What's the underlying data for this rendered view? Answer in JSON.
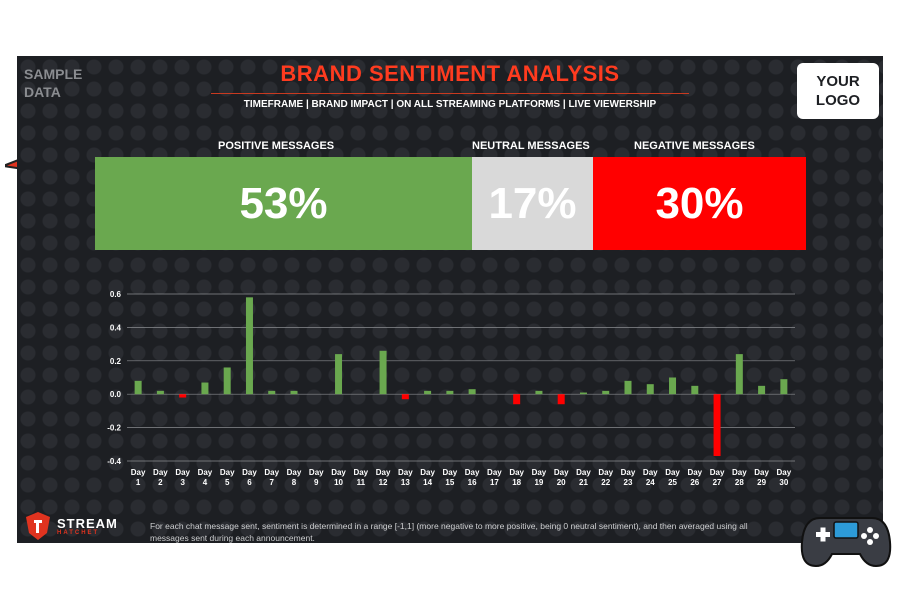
{
  "header": {
    "sample_label": "SAMPLE\nDATA",
    "title": "BRAND SENTIMENT ANALYSIS",
    "subtitle": "TIMEFRAME | BRAND IMPACT | ON ALL STREAMING PLATFORMS | LIVE VIEWERSHIP",
    "logo_text": "YOUR\nLOGO"
  },
  "summary": {
    "positive": {
      "label": "POSITIVE MESSAGES",
      "value": "53%",
      "color": "#6aa84f"
    },
    "neutral": {
      "label": "NEUTRAL MESSAGES",
      "value": "17%",
      "color": "#d9d9d9"
    },
    "negative": {
      "label": "NEGATIVE MESSAGES",
      "value": "30%",
      "color": "#ff0000"
    }
  },
  "chart_data": {
    "type": "bar",
    "categories": [
      "Day 1",
      "Day 2",
      "Day 3",
      "Day 4",
      "Day 5",
      "Day 6",
      "Day 7",
      "Day 8",
      "Day 9",
      "Day 10",
      "Day 11",
      "Day 12",
      "Day 13",
      "Day 14",
      "Day 15",
      "Day 16",
      "Day 17",
      "Day 18",
      "Day 19",
      "Day 20",
      "Day 21",
      "Day 22",
      "Day 23",
      "Day 24",
      "Day 25",
      "Day 26",
      "Day 27",
      "Day 28",
      "Day 29",
      "Day 30"
    ],
    "values": [
      0.08,
      0.02,
      -0.02,
      0.07,
      0.16,
      0.58,
      0.02,
      0.02,
      0,
      0.24,
      0,
      0.26,
      -0.03,
      0.02,
      0.02,
      0.03,
      0,
      -0.06,
      0.02,
      -0.06,
      0.01,
      0.02,
      0.08,
      0.06,
      0.1,
      0.05,
      -0.37,
      0.24,
      0.05,
      0.09
    ],
    "ylim": [
      -0.4,
      0.6
    ],
    "yticks": [
      "0.6",
      "0.4",
      "0.2",
      "0.0",
      "-0.2",
      "-0.4"
    ],
    "ytick_values": [
      0.6,
      0.4,
      0.2,
      0.0,
      -0.2,
      -0.4
    ],
    "grid": true,
    "positive_color": "#6aa84f",
    "negative_color": "#ff0000"
  },
  "footer": {
    "brand_main": "STREAM",
    "brand_sub": "HATCHET",
    "note": "For each chat message sent, sentiment is determined in a range [-1,1] (more negative to more positive, being 0 neutral sentiment), and then averaged using all messages sent during each announcement."
  }
}
